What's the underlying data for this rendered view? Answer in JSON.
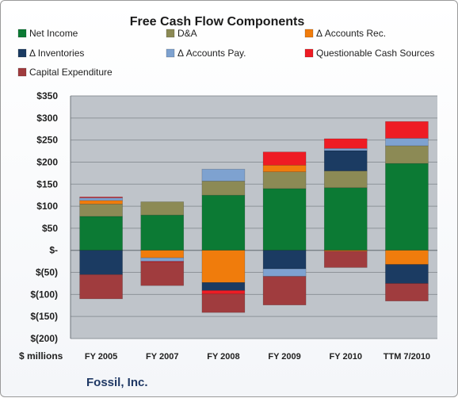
{
  "chart_data": {
    "type": "bar",
    "stacked": true,
    "title": "Free Cash Flow Components",
    "units_label": "$ millions",
    "company_label": "Fossil, Inc.",
    "categories": [
      "FY 2005",
      "FY 2007",
      "FY 2008",
      "FY 2009",
      "FY 2010",
      "TTM 7/2010"
    ],
    "ylim": [
      -200,
      350
    ],
    "y_ticks": [
      350,
      300,
      250,
      200,
      150,
      100,
      50,
      0,
      -50,
      -100,
      -150,
      -200
    ],
    "y_tick_labels": [
      "$350",
      "$300",
      "$250",
      "$200",
      "$150",
      "$100",
      "$50",
      "$-",
      "$(50)",
      "$(100)",
      "$(150)",
      "$(200)"
    ],
    "grid": true,
    "legend_position": "top",
    "series": [
      {
        "name": "Net Income",
        "color": "#0c7a34",
        "values": [
          77,
          80,
          125,
          140,
          142,
          197
        ]
      },
      {
        "name": "D&A",
        "color": "#8c8a55",
        "values": [
          28,
          30,
          32,
          38,
          38,
          40
        ]
      },
      {
        "name": "Δ Accounts Rec.",
        "color": "#f07c0c",
        "values": [
          8,
          -17,
          -73,
          15,
          -2,
          -32
        ]
      },
      {
        "name": "Δ Inventories",
        "color": "#1b3b62",
        "values": [
          -55,
          0,
          -18,
          -42,
          46,
          -43
        ]
      },
      {
        "name": "Δ Accounts Pay.",
        "color": "#7ea2d0",
        "values": [
          6,
          -8,
          27,
          -17,
          5,
          17
        ]
      },
      {
        "name": "Questionable Cash Sources",
        "color": "#ee1c24",
        "values": [
          2,
          -2,
          -8,
          30,
          22,
          38
        ]
      },
      {
        "name": "Capital Expenditure",
        "color": "#a03c3e",
        "values": [
          -55,
          -53,
          -42,
          -65,
          -37,
          -40
        ]
      }
    ]
  }
}
